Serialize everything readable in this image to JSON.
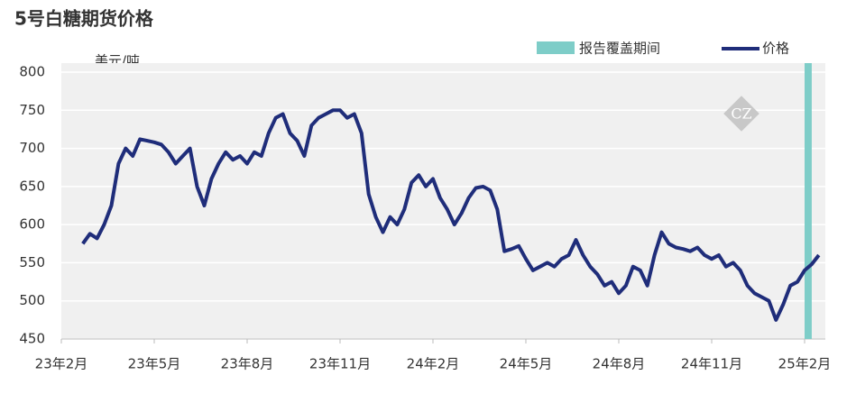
{
  "chart_data": {
    "type": "line",
    "title": "5号白糖期货价格",
    "ylabel": "美元/吨",
    "watermark": "CZ",
    "categories": [
      "23年2月",
      null,
      null,
      null,
      null,
      null,
      null,
      null,
      null,
      null,
      null,
      null,
      null,
      "23年5月",
      null,
      null,
      null,
      null,
      null,
      null,
      null,
      null,
      null,
      null,
      null,
      null,
      "23年8月",
      null,
      null,
      null,
      null,
      null,
      null,
      null,
      null,
      null,
      null,
      null,
      null,
      "23年11月",
      null,
      null,
      null,
      null,
      null,
      null,
      null,
      null,
      null,
      null,
      null,
      null,
      "24年2月",
      null,
      null,
      null,
      null,
      null,
      null,
      null,
      null,
      null,
      null,
      null,
      null,
      "24年5月",
      null,
      null,
      null,
      null,
      null,
      null,
      null,
      null,
      null,
      null,
      null,
      null,
      "24年8月",
      null,
      null,
      null,
      null,
      null,
      null,
      null,
      null,
      null,
      null,
      null,
      null,
      "24年11月",
      null,
      null,
      null,
      null,
      null,
      null,
      null,
      null,
      null,
      null,
      null,
      null,
      "25年2月",
      null,
      null
    ],
    "series": [
      {
        "name": "价格",
        "color": "#1f2d7a",
        "values": [
          null,
          null,
          null,
          575,
          588,
          582,
          600,
          625,
          680,
          700,
          690,
          712,
          710,
          708,
          705,
          695,
          680,
          690,
          700,
          650,
          625,
          660,
          680,
          695,
          685,
          690,
          680,
          695,
          690,
          720,
          740,
          745,
          720,
          710,
          690,
          730,
          740,
          745,
          750,
          750,
          740,
          745,
          720,
          640,
          610,
          590,
          610,
          600,
          620,
          655,
          665,
          650,
          660,
          635,
          620,
          600,
          615,
          635,
          648,
          650,
          645,
          620,
          565,
          568,
          572,
          555,
          540,
          545,
          550,
          545,
          555,
          560,
          580,
          560,
          545,
          535,
          520,
          525,
          510,
          520,
          545,
          540,
          520,
          560,
          590,
          575,
          570,
          568,
          565,
          570,
          560,
          555,
          560,
          545,
          550,
          540,
          520,
          510,
          505,
          500,
          475,
          495,
          520,
          525,
          540,
          548,
          560
        ]
      }
    ],
    "highlight": {
      "name": "报告覆盖期间",
      "color": "#7ecdc8",
      "start": 104,
      "end": 105
    },
    "ylim": [
      450,
      800
    ],
    "yticks": [
      450,
      500,
      550,
      600,
      650,
      700,
      750,
      800
    ],
    "grid": true
  }
}
